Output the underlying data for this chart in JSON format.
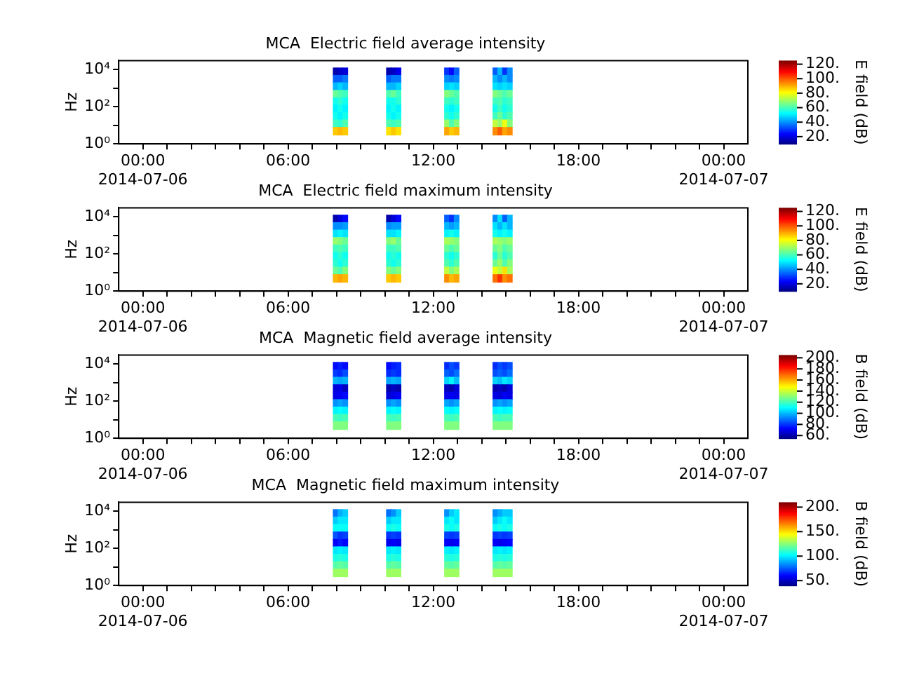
{
  "chart_data": [
    {
      "type": "heatmap",
      "title": "MCA  Electric field average intensity",
      "ylabel": "Hz",
      "clabel": "E field (dB)",
      "log": "y",
      "xlim": [
        "2014-07-05T23:00",
        "2014-07-07T01:00"
      ],
      "xticks": [
        {
          "value": "2014-07-06T00:00",
          "label": "00:00\n2014-07-06"
        },
        {
          "value": "2014-07-06T01:00",
          "label": null
        },
        {
          "value": "2014-07-06T02:00",
          "label": null
        },
        {
          "value": "2014-07-06T03:00",
          "label": null
        },
        {
          "value": "2014-07-06T04:00",
          "label": null
        },
        {
          "value": "2014-07-06T05:00",
          "label": null
        },
        {
          "value": "2014-07-06T06:00",
          "label": "06:00"
        },
        {
          "value": "2014-07-06T07:00",
          "label": null
        },
        {
          "value": "2014-07-06T08:00",
          "label": null
        },
        {
          "value": "2014-07-06T09:00",
          "label": null
        },
        {
          "value": "2014-07-06T10:00",
          "label": null
        },
        {
          "value": "2014-07-06T11:00",
          "label": null
        },
        {
          "value": "2014-07-06T12:00",
          "label": "12:00"
        },
        {
          "value": "2014-07-06T13:00",
          "label": null
        },
        {
          "value": "2014-07-06T14:00",
          "label": null
        },
        {
          "value": "2014-07-06T15:00",
          "label": null
        },
        {
          "value": "2014-07-06T16:00",
          "label": null
        },
        {
          "value": "2014-07-06T17:00",
          "label": null
        },
        {
          "value": "2014-07-06T18:00",
          "label": "18:00"
        },
        {
          "value": "2014-07-06T19:00",
          "label": null
        },
        {
          "value": "2014-07-06T20:00",
          "label": null
        },
        {
          "value": "2014-07-06T21:00",
          "label": null
        },
        {
          "value": "2014-07-06T22:00",
          "label": null
        },
        {
          "value": "2014-07-06T23:00",
          "label": null
        },
        {
          "value": "2014-07-07T00:00",
          "label": "00:00\n2014-07-07"
        }
      ],
      "ylim": [
        1,
        30000
      ],
      "yticks": [
        {
          "value": 1,
          "label": "10⁰"
        },
        {
          "value": 10,
          "label": null
        },
        {
          "value": 100,
          "label": "10²"
        },
        {
          "value": 1000,
          "label": null
        },
        {
          "value": 10000,
          "label": "10⁴"
        }
      ],
      "clim": [
        10,
        125
      ],
      "cticks": [
        {
          "value": 20,
          "label": "20."
        },
        {
          "value": 40,
          "label": "40."
        },
        {
          "value": 60,
          "label": "60."
        },
        {
          "value": 80,
          "label": "80."
        },
        {
          "value": 100,
          "label": "100."
        },
        {
          "value": 120,
          "label": "120."
        }
      ],
      "x": [
        "2014-07-06T07:57",
        "2014-07-06T08:09",
        "2014-07-06T08:21",
        "2014-07-06T08:33",
        "2014-07-06T08:45",
        "2014-07-06T08:57",
        "2014-07-06T09:09",
        "2014-07-06T09:21",
        "2014-07-06T09:33",
        "2014-07-06T09:45",
        "2014-07-06T09:57",
        "2014-07-06T10:09",
        "2014-07-06T10:21",
        "2014-07-06T10:33",
        "2014-07-06T10:45",
        "2014-07-06T10:57",
        "2014-07-06T11:09",
        "2014-07-06T11:21",
        "2014-07-06T11:33",
        "2014-07-06T11:45",
        "2014-07-06T11:57",
        "2014-07-06T12:09",
        "2014-07-06T12:21",
        "2014-07-06T12:33",
        "2014-07-06T12:45",
        "2014-07-06T12:57",
        "2014-07-06T13:09",
        "2014-07-06T13:21",
        "2014-07-06T13:33",
        "2014-07-06T13:45",
        "2014-07-06T13:57",
        "2014-07-06T14:09",
        "2014-07-06T14:21",
        "2014-07-06T14:33",
        "2014-07-06T14:45",
        "2014-07-06T14:57",
        "2014-07-06T15:09"
      ],
      "y": [
        8000,
        3200,
        1260,
        500,
        200,
        80,
        32,
        13,
        5
      ],
      "cells": [
        [
          15,
          18,
          20,
          null,
          null,
          null,
          null,
          null,
          null,
          null,
          null,
          15,
          18,
          22,
          null,
          null,
          null,
          null,
          null,
          null,
          null,
          null,
          null,
          30,
          25,
          35,
          null,
          null,
          null,
          null,
          null,
          null,
          null,
          35,
          45,
          30,
          40
        ],
        [
          35,
          35,
          38,
          null,
          null,
          null,
          null,
          null,
          null,
          null,
          null,
          35,
          38,
          38,
          null,
          null,
          null,
          null,
          null,
          null,
          null,
          null,
          null,
          40,
          38,
          40,
          null,
          null,
          null,
          null,
          null,
          null,
          null,
          45,
          40,
          45,
          40
        ],
        [
          45,
          48,
          45,
          null,
          null,
          null,
          null,
          null,
          null,
          null,
          null,
          45,
          45,
          48,
          null,
          null,
          null,
          null,
          null,
          null,
          null,
          null,
          null,
          48,
          50,
          48,
          null,
          null,
          null,
          null,
          null,
          null,
          null,
          50,
          48,
          50,
          48
        ],
        [
          65,
          62,
          60,
          null,
          null,
          null,
          null,
          null,
          null,
          null,
          null,
          62,
          65,
          60,
          null,
          null,
          null,
          null,
          null,
          null,
          null,
          null,
          null,
          68,
          65,
          62,
          null,
          null,
          null,
          null,
          null,
          null,
          null,
          68,
          65,
          62,
          65
        ],
        [
          55,
          58,
          55,
          null,
          null,
          null,
          null,
          null,
          null,
          null,
          null,
          55,
          55,
          58,
          null,
          null,
          null,
          null,
          null,
          null,
          null,
          null,
          null,
          60,
          58,
          60,
          null,
          null,
          null,
          null,
          null,
          null,
          null,
          60,
          62,
          58,
          60
        ],
        [
          52,
          55,
          52,
          null,
          null,
          null,
          null,
          null,
          null,
          null,
          null,
          52,
          55,
          52,
          null,
          null,
          null,
          null,
          null,
          null,
          null,
          null,
          null,
          55,
          52,
          55,
          null,
          null,
          null,
          null,
          null,
          null,
          null,
          55,
          60,
          55,
          58
        ],
        [
          55,
          52,
          55,
          null,
          null,
          null,
          null,
          null,
          null,
          null,
          null,
          55,
          52,
          55,
          null,
          null,
          null,
          null,
          null,
          null,
          null,
          null,
          null,
          58,
          55,
          58,
          null,
          null,
          null,
          null,
          null,
          null,
          null,
          60,
          65,
          58,
          62
        ],
        [
          60,
          58,
          62,
          null,
          null,
          null,
          null,
          null,
          null,
          null,
          null,
          62,
          60,
          62,
          null,
          null,
          null,
          null,
          null,
          null,
          null,
          null,
          null,
          70,
          62,
          68,
          null,
          null,
          null,
          null,
          null,
          null,
          null,
          75,
          70,
          80,
          68
        ],
        [
          88,
          90,
          88,
          null,
          null,
          null,
          null,
          null,
          null,
          null,
          null,
          85,
          88,
          85,
          null,
          null,
          null,
          null,
          null,
          null,
          null,
          null,
          null,
          92,
          88,
          90,
          null,
          null,
          null,
          null,
          null,
          null,
          null,
          95,
          100,
          92,
          95
        ]
      ]
    },
    {
      "type": "heatmap",
      "title": "MCA  Electric field maximum intensity",
      "ylabel": "Hz",
      "clabel": "E field (dB)",
      "log": "y",
      "xlim": [
        "2014-07-05T23:00",
        "2014-07-07T01:00"
      ],
      "xticks": [
        {
          "value": "2014-07-06T00:00",
          "label": "00:00\n2014-07-06"
        },
        {
          "value": "2014-07-06T01:00",
          "label": null
        },
        {
          "value": "2014-07-06T02:00",
          "label": null
        },
        {
          "value": "2014-07-06T03:00",
          "label": null
        },
        {
          "value": "2014-07-06T04:00",
          "label": null
        },
        {
          "value": "2014-07-06T05:00",
          "label": null
        },
        {
          "value": "2014-07-06T06:00",
          "label": "06:00"
        },
        {
          "value": "2014-07-06T07:00",
          "label": null
        },
        {
          "value": "2014-07-06T08:00",
          "label": null
        },
        {
          "value": "2014-07-06T09:00",
          "label": null
        },
        {
          "value": "2014-07-06T10:00",
          "label": null
        },
        {
          "value": "2014-07-06T11:00",
          "label": null
        },
        {
          "value": "2014-07-06T12:00",
          "label": "12:00"
        },
        {
          "value": "2014-07-06T13:00",
          "label": null
        },
        {
          "value": "2014-07-06T14:00",
          "label": null
        },
        {
          "value": "2014-07-06T15:00",
          "label": null
        },
        {
          "value": "2014-07-06T16:00",
          "label": null
        },
        {
          "value": "2014-07-06T17:00",
          "label": null
        },
        {
          "value": "2014-07-06T18:00",
          "label": "18:00"
        },
        {
          "value": "2014-07-06T19:00",
          "label": null
        },
        {
          "value": "2014-07-06T20:00",
          "label": null
        },
        {
          "value": "2014-07-06T21:00",
          "label": null
        },
        {
          "value": "2014-07-06T22:00",
          "label": null
        },
        {
          "value": "2014-07-06T23:00",
          "label": null
        },
        {
          "value": "2014-07-07T00:00",
          "label": "00:00\n2014-07-07"
        }
      ],
      "ylim": [
        1,
        30000
      ],
      "yticks": [
        {
          "value": 1,
          "label": "10⁰"
        },
        {
          "value": 10,
          "label": null
        },
        {
          "value": 100,
          "label": "10²"
        },
        {
          "value": 1000,
          "label": null
        },
        {
          "value": 10000,
          "label": "10⁴"
        }
      ],
      "clim": [
        10,
        125
      ],
      "cticks": [
        {
          "value": 20,
          "label": "20."
        },
        {
          "value": 40,
          "label": "40."
        },
        {
          "value": 60,
          "label": "60."
        },
        {
          "value": 80,
          "label": "80."
        },
        {
          "value": 100,
          "label": "100."
        },
        {
          "value": 120,
          "label": "120."
        }
      ],
      "x": [
        "2014-07-06T07:57",
        "2014-07-06T08:09",
        "2014-07-06T08:21",
        "2014-07-06T08:33",
        "2014-07-06T08:45",
        "2014-07-06T08:57",
        "2014-07-06T09:09",
        "2014-07-06T09:21",
        "2014-07-06T09:33",
        "2014-07-06T09:45",
        "2014-07-06T09:57",
        "2014-07-06T10:09",
        "2014-07-06T10:21",
        "2014-07-06T10:33",
        "2014-07-06T10:45",
        "2014-07-06T10:57",
        "2014-07-06T11:09",
        "2014-07-06T11:21",
        "2014-07-06T11:33",
        "2014-07-06T11:45",
        "2014-07-06T11:57",
        "2014-07-06T12:09",
        "2014-07-06T12:21",
        "2014-07-06T12:33",
        "2014-07-06T12:45",
        "2014-07-06T12:57",
        "2014-07-06T13:09",
        "2014-07-06T13:21",
        "2014-07-06T13:33",
        "2014-07-06T13:45",
        "2014-07-06T13:57",
        "2014-07-06T14:09",
        "2014-07-06T14:21",
        "2014-07-06T14:33",
        "2014-07-06T14:45",
        "2014-07-06T14:57",
        "2014-07-06T15:09"
      ],
      "y": [
        8000,
        3200,
        1260,
        500,
        200,
        80,
        32,
        13,
        5
      ],
      "cells": [
        [
          15,
          20,
          25,
          null,
          null,
          null,
          null,
          null,
          null,
          null,
          null,
          15,
          20,
          25,
          null,
          null,
          null,
          null,
          null,
          null,
          null,
          null,
          null,
          35,
          30,
          40,
          null,
          null,
          null,
          null,
          null,
          null,
          null,
          40,
          50,
          35,
          45
        ],
        [
          40,
          40,
          42,
          null,
          null,
          null,
          null,
          null,
          null,
          null,
          null,
          40,
          42,
          42,
          null,
          null,
          null,
          null,
          null,
          null,
          null,
          null,
          null,
          45,
          42,
          45,
          null,
          null,
          null,
          null,
          null,
          null,
          null,
          50,
          45,
          50,
          45
        ],
        [
          50,
          52,
          50,
          null,
          null,
          null,
          null,
          null,
          null,
          null,
          null,
          50,
          50,
          52,
          null,
          null,
          null,
          null,
          null,
          null,
          null,
          null,
          null,
          52,
          55,
          52,
          null,
          null,
          null,
          null,
          null,
          null,
          null,
          55,
          52,
          55,
          52
        ],
        [
          70,
          68,
          65,
          null,
          null,
          null,
          null,
          null,
          null,
          null,
          null,
          68,
          70,
          65,
          null,
          null,
          null,
          null,
          null,
          null,
          null,
          null,
          null,
          72,
          70,
          68,
          null,
          null,
          null,
          null,
          null,
          null,
          null,
          72,
          70,
          68,
          70
        ],
        [
          60,
          62,
          60,
          null,
          null,
          null,
          null,
          null,
          null,
          null,
          null,
          60,
          60,
          62,
          null,
          null,
          null,
          null,
          null,
          null,
          null,
          null,
          null,
          65,
          62,
          65,
          null,
          null,
          null,
          null,
          null,
          null,
          null,
          65,
          68,
          62,
          65
        ],
        [
          55,
          58,
          55,
          null,
          null,
          null,
          null,
          null,
          null,
          null,
          null,
          55,
          58,
          55,
          null,
          null,
          null,
          null,
          null,
          null,
          null,
          null,
          null,
          58,
          55,
          58,
          null,
          null,
          null,
          null,
          null,
          null,
          null,
          58,
          65,
          58,
          62
        ],
        [
          58,
          55,
          58,
          null,
          null,
          null,
          null,
          null,
          null,
          null,
          null,
          58,
          55,
          58,
          null,
          null,
          null,
          null,
          null,
          null,
          null,
          null,
          null,
          62,
          58,
          62,
          null,
          null,
          null,
          null,
          null,
          null,
          null,
          65,
          70,
          62,
          68
        ],
        [
          65,
          62,
          68,
          null,
          null,
          null,
          null,
          null,
          null,
          null,
          null,
          68,
          65,
          68,
          null,
          null,
          null,
          null,
          null,
          null,
          null,
          null,
          null,
          75,
          68,
          72,
          null,
          null,
          null,
          null,
          null,
          null,
          null,
          80,
          75,
          85,
          72
        ],
        [
          90,
          92,
          90,
          null,
          null,
          null,
          null,
          null,
          null,
          null,
          null,
          88,
          90,
          88,
          null,
          null,
          null,
          null,
          null,
          null,
          null,
          null,
          null,
          95,
          90,
          92,
          null,
          null,
          null,
          null,
          null,
          null,
          null,
          98,
          105,
          95,
          98
        ]
      ]
    },
    {
      "type": "heatmap",
      "title": "MCA  Magnetic field average intensity",
      "ylabel": "Hz",
      "clabel": "B field (dB)",
      "log": "y",
      "xlim": [
        "2014-07-05T23:00",
        "2014-07-07T01:00"
      ],
      "xticks": [
        {
          "value": "2014-07-06T00:00",
          "label": "00:00\n2014-07-06"
        },
        {
          "value": "2014-07-06T01:00",
          "label": null
        },
        {
          "value": "2014-07-06T02:00",
          "label": null
        },
        {
          "value": "2014-07-06T03:00",
          "label": null
        },
        {
          "value": "2014-07-06T04:00",
          "label": null
        },
        {
          "value": "2014-07-06T05:00",
          "label": null
        },
        {
          "value": "2014-07-06T06:00",
          "label": "06:00"
        },
        {
          "value": "2014-07-06T07:00",
          "label": null
        },
        {
          "value": "2014-07-06T08:00",
          "label": null
        },
        {
          "value": "2014-07-06T09:00",
          "label": null
        },
        {
          "value": "2014-07-06T10:00",
          "label": null
        },
        {
          "value": "2014-07-06T11:00",
          "label": null
        },
        {
          "value": "2014-07-06T12:00",
          "label": "12:00"
        },
        {
          "value": "2014-07-06T13:00",
          "label": null
        },
        {
          "value": "2014-07-06T14:00",
          "label": null
        },
        {
          "value": "2014-07-06T15:00",
          "label": null
        },
        {
          "value": "2014-07-06T16:00",
          "label": null
        },
        {
          "value": "2014-07-06T17:00",
          "label": null
        },
        {
          "value": "2014-07-06T18:00",
          "label": "18:00"
        },
        {
          "value": "2014-07-06T19:00",
          "label": null
        },
        {
          "value": "2014-07-06T20:00",
          "label": null
        },
        {
          "value": "2014-07-06T21:00",
          "label": null
        },
        {
          "value": "2014-07-06T22:00",
          "label": null
        },
        {
          "value": "2014-07-06T23:00",
          "label": null
        },
        {
          "value": "2014-07-07T00:00",
          "label": "00:00\n2014-07-07"
        }
      ],
      "ylim": [
        1,
        30000
      ],
      "yticks": [
        {
          "value": 1,
          "label": "10⁰"
        },
        {
          "value": 10,
          "label": null
        },
        {
          "value": 100,
          "label": "10²"
        },
        {
          "value": 1000,
          "label": null
        },
        {
          "value": 10000,
          "label": "10⁴"
        }
      ],
      "clim": [
        55,
        205
      ],
      "cticks": [
        {
          "value": 60,
          "label": "60."
        },
        {
          "value": 80,
          "label": "80."
        },
        {
          "value": 100,
          "label": "100."
        },
        {
          "value": 120,
          "label": "120."
        },
        {
          "value": 140,
          "label": "140."
        },
        {
          "value": 160,
          "label": "160."
        },
        {
          "value": 180,
          "label": "180."
        },
        {
          "value": 200,
          "label": "200."
        }
      ],
      "x": [
        "2014-07-06T07:57",
        "2014-07-06T08:09",
        "2014-07-06T08:21",
        "2014-07-06T08:33",
        "2014-07-06T08:45",
        "2014-07-06T08:57",
        "2014-07-06T09:09",
        "2014-07-06T09:21",
        "2014-07-06T09:33",
        "2014-07-06T09:45",
        "2014-07-06T09:57",
        "2014-07-06T10:09",
        "2014-07-06T10:21",
        "2014-07-06T10:33",
        "2014-07-06T10:45",
        "2014-07-06T10:57",
        "2014-07-06T11:09",
        "2014-07-06T11:21",
        "2014-07-06T11:33",
        "2014-07-06T11:45",
        "2014-07-06T11:57",
        "2014-07-06T12:09",
        "2014-07-06T12:21",
        "2014-07-06T12:33",
        "2014-07-06T12:45",
        "2014-07-06T12:57",
        "2014-07-06T13:09",
        "2014-07-06T13:21",
        "2014-07-06T13:33",
        "2014-07-06T13:45",
        "2014-07-06T13:57",
        "2014-07-06T14:09",
        "2014-07-06T14:21",
        "2014-07-06T14:33",
        "2014-07-06T14:45",
        "2014-07-06T14:57",
        "2014-07-06T15:09"
      ],
      "y": [
        8000,
        3200,
        1260,
        500,
        200,
        80,
        32,
        13,
        5
      ],
      "cells": [
        [
          75,
          78,
          75,
          null,
          null,
          null,
          null,
          null,
          null,
          null,
          null,
          75,
          78,
          80,
          null,
          null,
          null,
          null,
          null,
          null,
          null,
          null,
          null,
          80,
          85,
          82,
          null,
          null,
          null,
          null,
          null,
          null,
          null,
          80,
          85,
          82,
          85
        ],
        [
          82,
          80,
          85,
          null,
          null,
          null,
          null,
          null,
          null,
          null,
          null,
          80,
          82,
          80,
          null,
          null,
          null,
          null,
          null,
          null,
          null,
          null,
          null,
          88,
          85,
          90,
          null,
          null,
          null,
          null,
          null,
          null,
          null,
          85,
          88,
          85,
          90
        ],
        [
          100,
          98,
          100,
          null,
          null,
          null,
          null,
          null,
          null,
          null,
          null,
          98,
          100,
          98,
          null,
          null,
          null,
          null,
          null,
          null,
          null,
          null,
          null,
          105,
          110,
          102,
          null,
          null,
          null,
          null,
          null,
          null,
          null,
          105,
          102,
          108,
          105
        ],
        [
          68,
          70,
          65,
          null,
          null,
          null,
          null,
          null,
          null,
          null,
          null,
          62,
          65,
          62,
          null,
          null,
          null,
          null,
          null,
          null,
          null,
          null,
          null,
          65,
          62,
          68,
          null,
          null,
          null,
          null,
          null,
          null,
          null,
          62,
          65,
          62,
          68
        ],
        [
          70,
          72,
          75,
          null,
          null,
          null,
          null,
          null,
          null,
          null,
          null,
          68,
          70,
          72,
          null,
          null,
          null,
          null,
          null,
          null,
          null,
          null,
          null,
          70,
          72,
          70,
          null,
          null,
          null,
          null,
          null,
          null,
          null,
          70,
          68,
          72,
          70
        ],
        [
          95,
          98,
          95,
          null,
          null,
          null,
          null,
          null,
          null,
          null,
          null,
          95,
          98,
          95,
          null,
          null,
          null,
          null,
          null,
          null,
          null,
          null,
          null,
          98,
          95,
          98,
          null,
          null,
          null,
          null,
          null,
          null,
          null,
          95,
          98,
          95,
          98
        ],
        [
          110,
          112,
          110,
          null,
          null,
          null,
          null,
          null,
          null,
          null,
          null,
          110,
          112,
          110,
          null,
          null,
          null,
          null,
          null,
          null,
          null,
          null,
          null,
          112,
          110,
          112,
          null,
          null,
          null,
          null,
          null,
          null,
          null,
          110,
          112,
          110,
          112
        ],
        [
          122,
          120,
          122,
          null,
          null,
          null,
          null,
          null,
          null,
          null,
          null,
          122,
          120,
          122,
          null,
          null,
          null,
          null,
          null,
          null,
          null,
          null,
          null,
          122,
          120,
          122,
          null,
          null,
          null,
          null,
          null,
          null,
          null,
          122,
          120,
          122,
          122
        ],
        [
          130,
          130,
          130,
          null,
          null,
          null,
          null,
          null,
          null,
          null,
          null,
          130,
          130,
          130,
          null,
          null,
          null,
          null,
          null,
          null,
          null,
          null,
          null,
          130,
          130,
          130,
          null,
          null,
          null,
          null,
          null,
          null,
          null,
          130,
          130,
          130,
          130
        ]
      ]
    },
    {
      "type": "heatmap",
      "title": "MCA  Magnetic field maximum intensity",
      "ylabel": "Hz",
      "clabel": "B field (dB)",
      "log": "y",
      "xlim": [
        "2014-07-05T23:00",
        "2014-07-07T01:00"
      ],
      "xticks": [
        {
          "value": "2014-07-06T00:00",
          "label": "00:00\n2014-07-06"
        },
        {
          "value": "2014-07-06T01:00",
          "label": null
        },
        {
          "value": "2014-07-06T02:00",
          "label": null
        },
        {
          "value": "2014-07-06T03:00",
          "label": null
        },
        {
          "value": "2014-07-06T04:00",
          "label": null
        },
        {
          "value": "2014-07-06T05:00",
          "label": null
        },
        {
          "value": "2014-07-06T06:00",
          "label": "06:00"
        },
        {
          "value": "2014-07-06T07:00",
          "label": null
        },
        {
          "value": "2014-07-06T08:00",
          "label": null
        },
        {
          "value": "2014-07-06T09:00",
          "label": null
        },
        {
          "value": "2014-07-06T10:00",
          "label": null
        },
        {
          "value": "2014-07-06T11:00",
          "label": null
        },
        {
          "value": "2014-07-06T12:00",
          "label": "12:00"
        },
        {
          "value": "2014-07-06T13:00",
          "label": null
        },
        {
          "value": "2014-07-06T14:00",
          "label": null
        },
        {
          "value": "2014-07-06T15:00",
          "label": null
        },
        {
          "value": "2014-07-06T16:00",
          "label": null
        },
        {
          "value": "2014-07-06T17:00",
          "label": null
        },
        {
          "value": "2014-07-06T18:00",
          "label": "18:00"
        },
        {
          "value": "2014-07-06T19:00",
          "label": null
        },
        {
          "value": "2014-07-06T20:00",
          "label": null
        },
        {
          "value": "2014-07-06T21:00",
          "label": null
        },
        {
          "value": "2014-07-06T22:00",
          "label": null
        },
        {
          "value": "2014-07-06T23:00",
          "label": null
        },
        {
          "value": "2014-07-07T00:00",
          "label": "00:00\n2014-07-07"
        }
      ],
      "ylim": [
        1,
        30000
      ],
      "yticks": [
        {
          "value": 1,
          "label": "10⁰"
        },
        {
          "value": 10,
          "label": null
        },
        {
          "value": 100,
          "label": "10²"
        },
        {
          "value": 1000,
          "label": null
        },
        {
          "value": 10000,
          "label": "10⁴"
        }
      ],
      "clim": [
        40,
        210
      ],
      "cticks": [
        {
          "value": 50,
          "label": "50."
        },
        {
          "value": 100,
          "label": "100."
        },
        {
          "value": 150,
          "label": "150."
        },
        {
          "value": 200,
          "label": "200."
        }
      ],
      "x": [
        "2014-07-06T07:57",
        "2014-07-06T08:09",
        "2014-07-06T08:21",
        "2014-07-06T08:33",
        "2014-07-06T08:45",
        "2014-07-06T08:57",
        "2014-07-06T09:09",
        "2014-07-06T09:21",
        "2014-07-06T09:33",
        "2014-07-06T09:45",
        "2014-07-06T09:57",
        "2014-07-06T10:09",
        "2014-07-06T10:21",
        "2014-07-06T10:33",
        "2014-07-06T10:45",
        "2014-07-06T10:57",
        "2014-07-06T11:09",
        "2014-07-06T11:21",
        "2014-07-06T11:33",
        "2014-07-06T11:45",
        "2014-07-06T11:57",
        "2014-07-06T12:09",
        "2014-07-06T12:21",
        "2014-07-06T12:33",
        "2014-07-06T12:45",
        "2014-07-06T12:57",
        "2014-07-06T13:09",
        "2014-07-06T13:21",
        "2014-07-06T13:33",
        "2014-07-06T13:45",
        "2014-07-06T13:57",
        "2014-07-06T14:09",
        "2014-07-06T14:21",
        "2014-07-06T14:33",
        "2014-07-06T14:45",
        "2014-07-06T14:57",
        "2014-07-06T15:09"
      ],
      "y": [
        8000,
        3200,
        1260,
        500,
        200,
        80,
        32,
        13,
        5
      ],
      "cells": [
        [
          80,
          90,
          95,
          null,
          null,
          null,
          null,
          null,
          null,
          null,
          null,
          80,
          85,
          95,
          null,
          null,
          null,
          null,
          null,
          null,
          null,
          null,
          null,
          85,
          95,
          100,
          null,
          null,
          null,
          null,
          null,
          null,
          null,
          85,
          90,
          95,
          95
        ],
        [
          95,
          100,
          100,
          null,
          null,
          null,
          null,
          null,
          null,
          null,
          null,
          95,
          100,
          100,
          null,
          null,
          null,
          null,
          null,
          null,
          null,
          null,
          null,
          100,
          105,
          100,
          null,
          null,
          null,
          null,
          null,
          null,
          null,
          95,
          100,
          105,
          100
        ],
        [
          105,
          105,
          105,
          null,
          null,
          null,
          null,
          null,
          null,
          null,
          null,
          105,
          108,
          105,
          null,
          null,
          null,
          null,
          null,
          null,
          null,
          null,
          null,
          108,
          105,
          108,
          null,
          null,
          null,
          null,
          null,
          null,
          null,
          105,
          108,
          105,
          108
        ],
        [
          75,
          70,
          72,
          null,
          null,
          null,
          null,
          null,
          null,
          null,
          null,
          70,
          72,
          70,
          null,
          null,
          null,
          null,
          null,
          null,
          null,
          null,
          null,
          72,
          70,
          72,
          null,
          null,
          null,
          null,
          null,
          null,
          null,
          70,
          72,
          70,
          72
        ],
        [
          60,
          65,
          62,
          null,
          null,
          null,
          null,
          null,
          null,
          null,
          null,
          58,
          60,
          58,
          null,
          null,
          null,
          null,
          null,
          null,
          null,
          null,
          null,
          60,
          58,
          60,
          null,
          null,
          null,
          null,
          null,
          null,
          null,
          60,
          58,
          60,
          62
        ],
        [
          100,
          102,
          100,
          null,
          null,
          null,
          null,
          null,
          null,
          null,
          null,
          100,
          102,
          100,
          null,
          null,
          null,
          null,
          null,
          null,
          null,
          null,
          null,
          102,
          100,
          102,
          null,
          null,
          null,
          null,
          null,
          null,
          null,
          100,
          102,
          100,
          102
        ],
        [
          108,
          110,
          108,
          null,
          null,
          null,
          null,
          null,
          null,
          null,
          null,
          108,
          110,
          108,
          null,
          null,
          null,
          null,
          null,
          null,
          null,
          null,
          null,
          110,
          108,
          110,
          null,
          null,
          null,
          null,
          null,
          null,
          null,
          108,
          110,
          108,
          110
        ],
        [
          118,
          120,
          118,
          null,
          null,
          null,
          null,
          null,
          null,
          null,
          null,
          118,
          120,
          118,
          null,
          null,
          null,
          null,
          null,
          null,
          null,
          null,
          null,
          120,
          118,
          120,
          null,
          null,
          null,
          null,
          null,
          null,
          null,
          118,
          120,
          118,
          120
        ],
        [
          130,
          130,
          130,
          null,
          null,
          null,
          null,
          null,
          null,
          null,
          null,
          130,
          130,
          130,
          null,
          null,
          null,
          null,
          null,
          null,
          null,
          null,
          null,
          130,
          130,
          130,
          null,
          null,
          null,
          null,
          null,
          null,
          null,
          130,
          130,
          130,
          130
        ]
      ]
    }
  ]
}
